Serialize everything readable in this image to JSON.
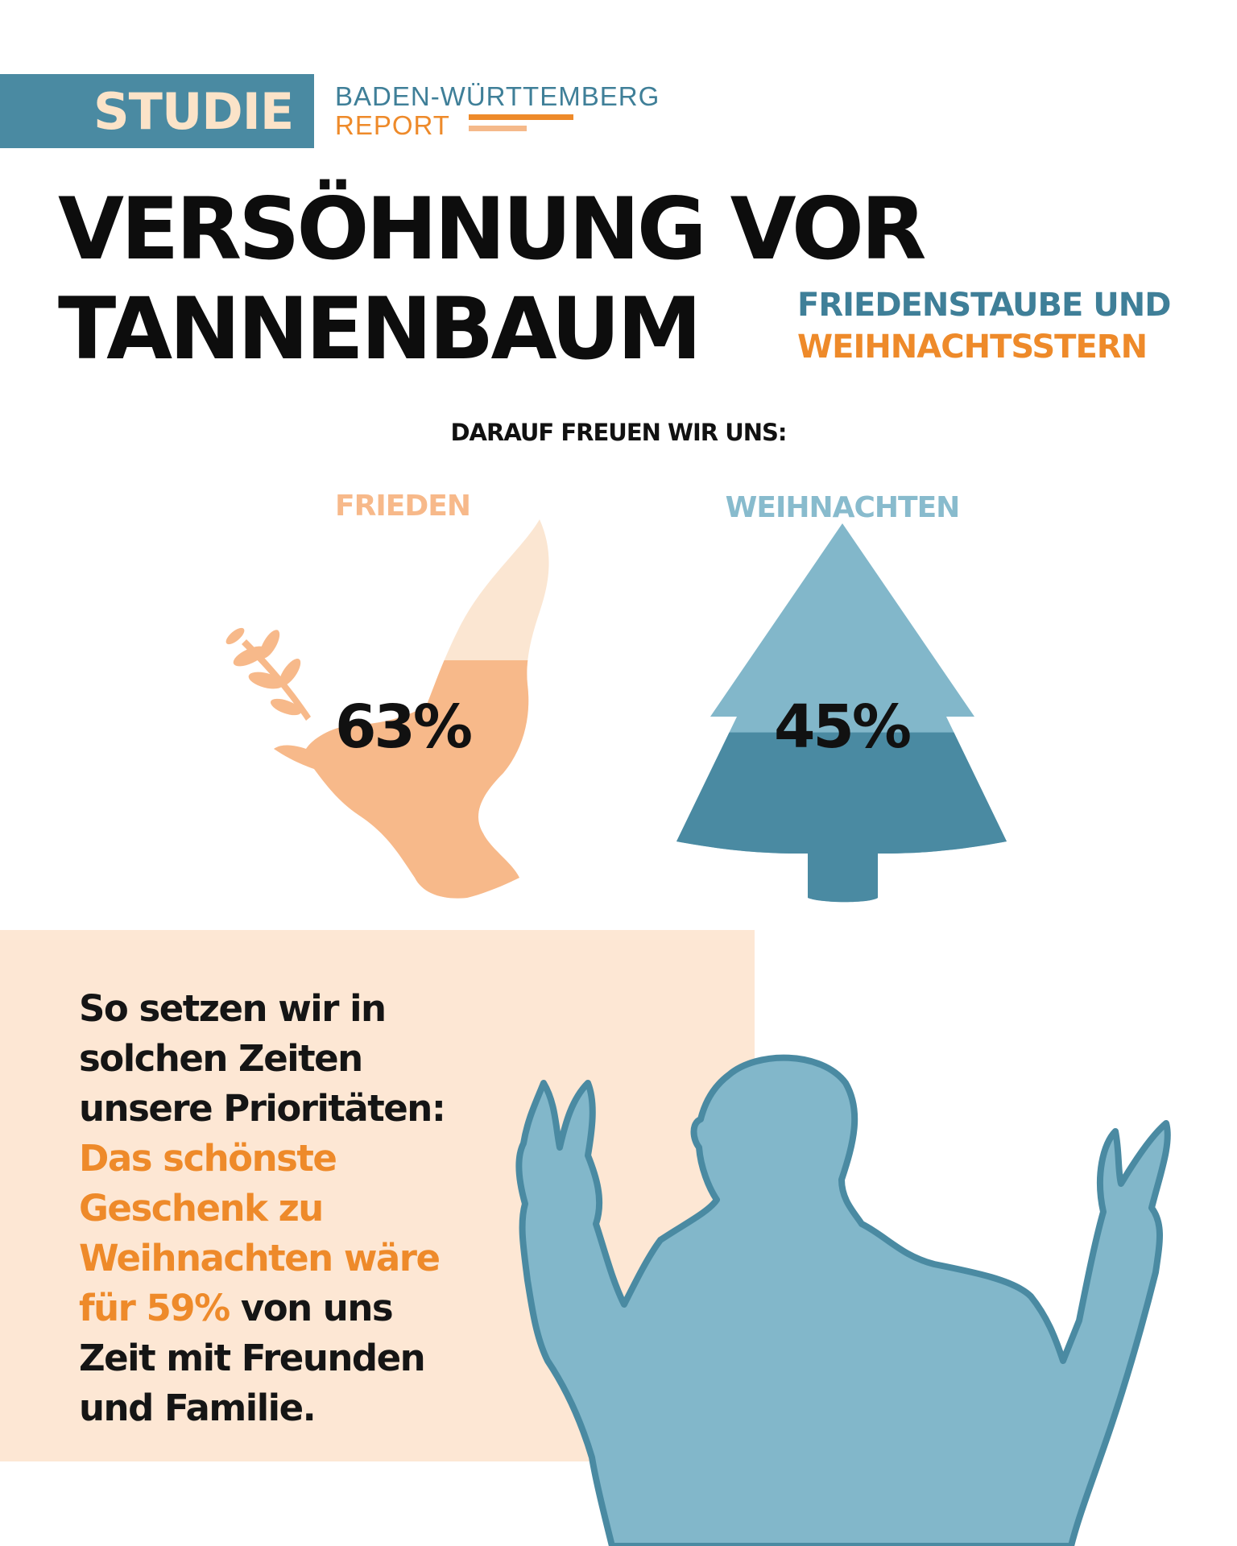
{
  "badge": {
    "label": "STUDIE"
  },
  "report": {
    "line1": "BADEN-WÜRTTEMBERG",
    "line2": "REPORT"
  },
  "headline": {
    "line1": "VERSÖHNUNG VOR",
    "line2": "TANNENBAUM"
  },
  "subtitle": {
    "line1": "FRIEDENSTAUBE UND",
    "line2": "WEIHNACHTSSTERN"
  },
  "section_heading": "DARAUF FREUEN WIR UNS:",
  "stats": {
    "frieden": {
      "label": "FRIEDEN",
      "percent_text": "63%",
      "value": 63
    },
    "weihnachten": {
      "label": "WEIHNACHTEN",
      "percent_text": "45%",
      "value": 45
    }
  },
  "box": {
    "line1": "So setzen wir in",
    "line2": "solchen Zeiten",
    "line3": "unsere Prioritäten:",
    "line4": "Das schönste",
    "line5": "Geschenk zu",
    "line6": "Weihnachten wäre",
    "line7_orange": "für 59%",
    "line7_rest": " von uns",
    "line8": "Zeit mit Freunden",
    "line9": "und Familie."
  },
  "colors": {
    "blue_dark": "#4a8aa2",
    "blue_light": "#82b7ca",
    "orange": "#ee8a2a",
    "peach": "#f7b98a",
    "peach_light": "#fbe6d2",
    "box_bg": "#fde7d4"
  },
  "icons": [
    "dove-icon",
    "tree-icon",
    "person-silhouette-icon"
  ]
}
